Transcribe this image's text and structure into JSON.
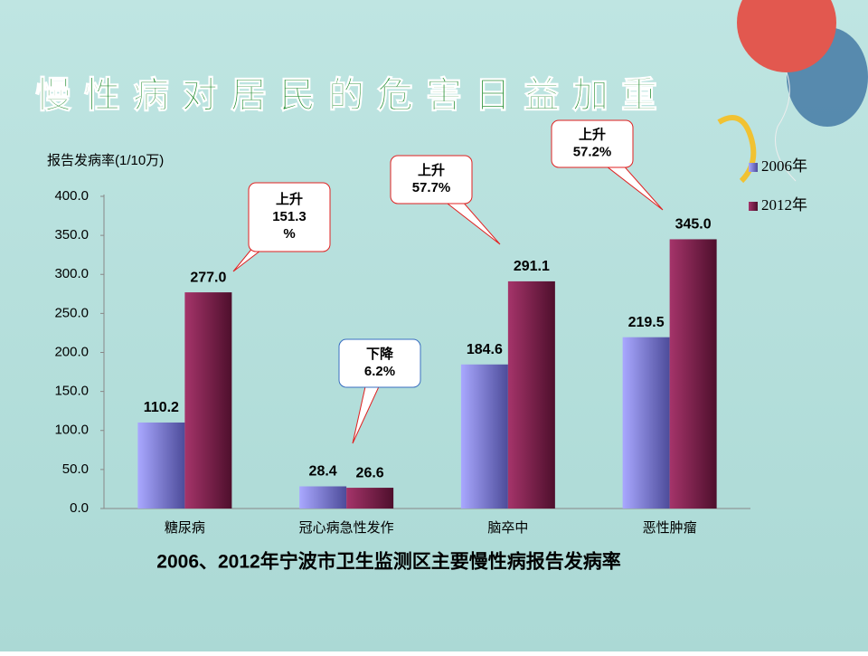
{
  "chart_data": {
    "type": "bar",
    "title": "慢性病对居民的危害日益加重",
    "y_label": "报告发病率(1/10万)",
    "caption": "2006、2012年宁波市卫生监测区主要慢性病报告发病率",
    "categories": [
      "糖尿病",
      "冠心病急性发作",
      "脑卒中",
      "恶性肿瘤"
    ],
    "series": [
      {
        "name": "2006年",
        "color": "#8d8cf0",
        "values": [
          110.2,
          28.4,
          184.6,
          219.5
        ],
        "value_labels": [
          "110.2",
          "28.4",
          "184.6",
          "219.5"
        ]
      },
      {
        "name": "2012年",
        "color": "#8a2352",
        "values": [
          277,
          26.6,
          291.1,
          345
        ],
        "value_labels": [
          "277.0",
          "26.6",
          "291.1",
          "345.0"
        ]
      }
    ],
    "ylim": [
      0,
      400
    ],
    "yticks": [
      {
        "value": 0,
        "label": "0.0"
      },
      {
        "value": 50,
        "label": "50.0"
      },
      {
        "value": 100,
        "label": "100.0"
      },
      {
        "value": 150,
        "label": "150.0"
      },
      {
        "value": 200,
        "label": "200.0"
      },
      {
        "value": 250,
        "label": "250.0"
      },
      {
        "value": 300,
        "label": "300.0"
      },
      {
        "value": 350,
        "label": "350.0"
      },
      {
        "value": 400,
        "label": "400.0"
      }
    ],
    "legend": "right",
    "annotations": [
      {
        "lines": [
          "上升",
          "151.3",
          "%"
        ]
      },
      {
        "lines": [
          "下降",
          "6.2%"
        ]
      },
      {
        "lines": [
          "上升",
          "57.7%"
        ]
      },
      {
        "lines": [
          "上升",
          "57.2%"
        ]
      }
    ]
  }
}
